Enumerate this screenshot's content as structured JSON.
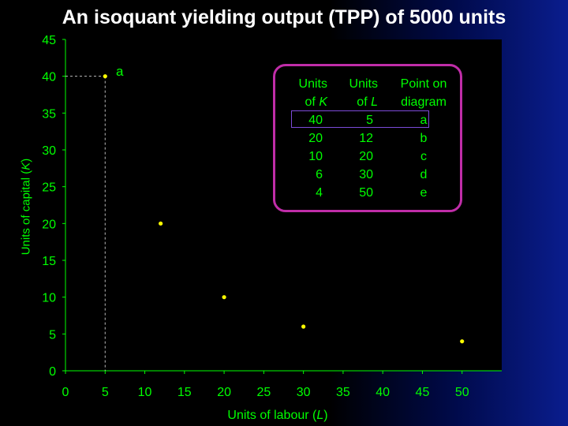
{
  "slide": {
    "title": "An isoquant yielding output (TPP) of 5000 units"
  },
  "chart_data": {
    "type": "scatter",
    "title": "An isoquant yielding output (TPP) of 5000 units",
    "xlabel_main": "Units of labour (",
    "xlabel_var": "L",
    "xlabel_close": ")",
    "ylabel_main": "Units of capital (",
    "ylabel_var": "K",
    "ylabel_close": ")",
    "xlim": [
      0,
      55
    ],
    "ylim": [
      0,
      45
    ],
    "xticks": [
      "0",
      "5",
      "10",
      "15",
      "20",
      "25",
      "30",
      "35",
      "40",
      "45",
      "50"
    ],
    "yticks": [
      "0",
      "5",
      "10",
      "15",
      "20",
      "25",
      "30",
      "35",
      "40",
      "45"
    ],
    "points": [
      {
        "x": 5,
        "y": 40,
        "label": "a"
      },
      {
        "x": 12,
        "y": 20,
        "label": ""
      },
      {
        "x": 20,
        "y": 10,
        "label": ""
      },
      {
        "x": 30,
        "y": 6,
        "label": ""
      },
      {
        "x": 50,
        "y": 4,
        "label": ""
      }
    ],
    "point_color": "#ffff00",
    "text_color": "#00ff00",
    "guide_color": "#bbbbbb"
  },
  "table": {
    "headers": {
      "k_line1": "Units",
      "k_line2_main": "of",
      "k_line2_var": "K",
      "l_line1": "Units",
      "l_line2_main": "of",
      "l_line2_var": "L",
      "p_line1": "Point on",
      "p_line2": "diagram"
    },
    "rows": [
      {
        "k": "40",
        "l": "5",
        "p": "a"
      },
      {
        "k": "20",
        "l": "12",
        "p": "b"
      },
      {
        "k": "10",
        "l": "20",
        "p": "c"
      },
      {
        "k": "6",
        "l": "30",
        "p": "d"
      },
      {
        "k": "4",
        "l": "50",
        "p": "e"
      }
    ],
    "border_color": "#c02da8",
    "highlight_color": "#7c4ad8"
  }
}
